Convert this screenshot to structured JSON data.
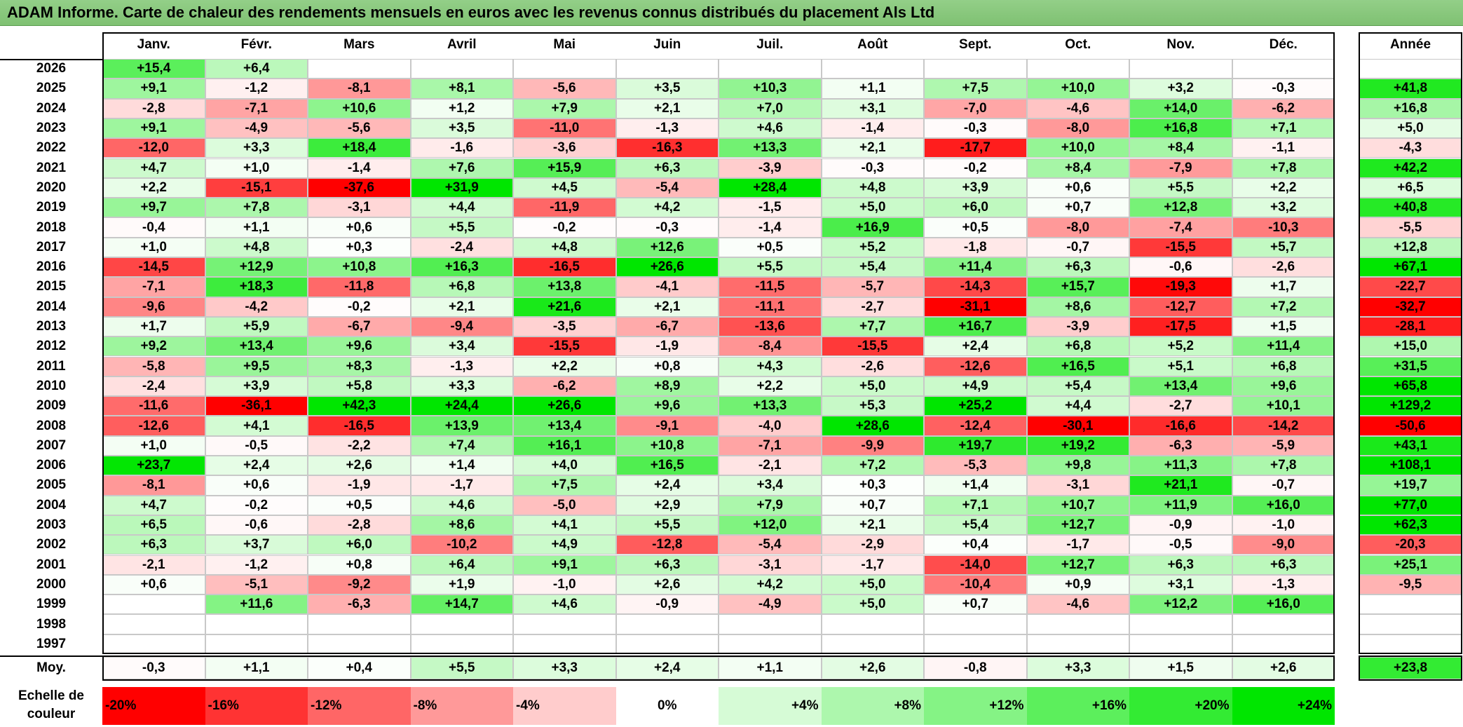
{
  "title": "ADAM Informe. Carte de chaleur des rendements mensuels en euros avec les revenus connus distribués du placement Als Ltd",
  "chart_data": {
    "type": "heatmap",
    "title": "ADAM Informe. Carte de chaleur des rendements mensuels en euros avec les revenus connus distribués du placement Als Ltd",
    "months": [
      "Janv.",
      "Févr.",
      "Mars",
      "Avril",
      "Mai",
      "Juin",
      "Juil.",
      "Août",
      "Sept.",
      "Oct.",
      "Nov.",
      "Déc."
    ],
    "year_header": "Année",
    "rows": [
      {
        "year": "2026",
        "values": [
          "+15,4",
          "+6,4",
          "",
          "",
          "",
          "",
          "",
          "",
          "",
          "",
          "",
          ""
        ],
        "annual": ""
      },
      {
        "year": "2025",
        "values": [
          "+9,1",
          "-1,2",
          "-8,1",
          "+8,1",
          "-5,6",
          "+3,5",
          "+10,3",
          "+1,1",
          "+7,5",
          "+10,0",
          "+3,2",
          "-0,3"
        ],
        "annual": "+41,8"
      },
      {
        "year": "2024",
        "values": [
          "-2,8",
          "-7,1",
          "+10,6",
          "+1,2",
          "+7,9",
          "+2,1",
          "+7,0",
          "+3,1",
          "-7,0",
          "-4,6",
          "+14,0",
          "-6,2"
        ],
        "annual": "+16,8"
      },
      {
        "year": "2023",
        "values": [
          "+9,1",
          "-4,9",
          "-5,6",
          "+3,5",
          "-11,0",
          "-1,3",
          "+4,6",
          "-1,4",
          "-0,3",
          "-8,0",
          "+16,8",
          "+7,1"
        ],
        "annual": "+5,0"
      },
      {
        "year": "2022",
        "values": [
          "-12,0",
          "+3,3",
          "+18,4",
          "-1,6",
          "-3,6",
          "-16,3",
          "+13,3",
          "+2,1",
          "-17,7",
          "+10,0",
          "+8,4",
          "-1,1"
        ],
        "annual": "-4,3"
      },
      {
        "year": "2021",
        "values": [
          "+4,7",
          "+1,0",
          "-1,4",
          "+7,6",
          "+15,9",
          "+6,3",
          "-3,9",
          "-0,3",
          "-0,2",
          "+8,4",
          "-7,9",
          "+7,8"
        ],
        "annual": "+42,2"
      },
      {
        "year": "2020",
        "values": [
          "+2,2",
          "-15,1",
          "-37,6",
          "+31,9",
          "+4,5",
          "-5,4",
          "+28,4",
          "+4,8",
          "+3,9",
          "+0,6",
          "+5,5",
          "+2,2"
        ],
        "annual": "+6,5"
      },
      {
        "year": "2019",
        "values": [
          "+9,7",
          "+7,8",
          "-3,1",
          "+4,4",
          "-11,9",
          "+4,2",
          "-1,5",
          "+5,0",
          "+6,0",
          "+0,7",
          "+12,8",
          "+3,2"
        ],
        "annual": "+40,8"
      },
      {
        "year": "2018",
        "values": [
          "-0,4",
          "+1,1",
          "+0,6",
          "+5,5",
          "-0,2",
          "-0,3",
          "-1,4",
          "+16,9",
          "+0,5",
          "-8,0",
          "-7,4",
          "-10,3"
        ],
        "annual": "-5,5"
      },
      {
        "year": "2017",
        "values": [
          "+1,0",
          "+4,8",
          "+0,3",
          "-2,4",
          "+4,8",
          "+12,6",
          "+0,5",
          "+5,2",
          "-1,8",
          "-0,7",
          "-15,5",
          "+5,7"
        ],
        "annual": "+12,8"
      },
      {
        "year": "2016",
        "values": [
          "-14,5",
          "+12,9",
          "+10,8",
          "+16,3",
          "-16,5",
          "+26,6",
          "+5,5",
          "+5,4",
          "+11,4",
          "+6,3",
          "-0,6",
          "-2,6"
        ],
        "annual": "+67,1"
      },
      {
        "year": "2015",
        "values": [
          "-7,1",
          "+18,3",
          "-11,8",
          "+6,8",
          "+13,8",
          "-4,1",
          "-11,5",
          "-5,7",
          "-14,3",
          "+15,7",
          "-19,3",
          "+1,7"
        ],
        "annual": "-22,7"
      },
      {
        "year": "2014",
        "values": [
          "-9,6",
          "-4,2",
          "-0,2",
          "+2,1",
          "+21,6",
          "+2,1",
          "-11,1",
          "-2,7",
          "-31,1",
          "+8,6",
          "-12,7",
          "+7,2"
        ],
        "annual": "-32,7"
      },
      {
        "year": "2013",
        "values": [
          "+1,7",
          "+5,9",
          "-6,7",
          "-9,4",
          "-3,5",
          "-6,7",
          "-13,6",
          "+7,7",
          "+16,7",
          "-3,9",
          "-17,5",
          "+1,5"
        ],
        "annual": "-28,1"
      },
      {
        "year": "2012",
        "values": [
          "+9,2",
          "+13,4",
          "+9,6",
          "+3,4",
          "-15,5",
          "-1,9",
          "-8,4",
          "-15,5",
          "+2,4",
          "+6,8",
          "+5,2",
          "+11,4"
        ],
        "annual": "+15,0"
      },
      {
        "year": "2011",
        "values": [
          "-5,8",
          "+9,5",
          "+8,3",
          "-1,3",
          "+2,2",
          "+0,8",
          "+4,3",
          "-2,6",
          "-12,6",
          "+16,5",
          "+5,1",
          "+6,8"
        ],
        "annual": "+31,5"
      },
      {
        "year": "2010",
        "values": [
          "-2,4",
          "+3,9",
          "+5,8",
          "+3,3",
          "-6,2",
          "+8,9",
          "+2,2",
          "+5,0",
          "+4,9",
          "+5,4",
          "+13,4",
          "+9,6"
        ],
        "annual": "+65,8"
      },
      {
        "year": "2009",
        "values": [
          "-11,6",
          "-36,1",
          "+42,3",
          "+24,4",
          "+26,6",
          "+9,6",
          "+13,3",
          "+5,3",
          "+25,2",
          "+4,4",
          "-2,7",
          "+10,1"
        ],
        "annual": "+129,2"
      },
      {
        "year": "2008",
        "values": [
          "-12,6",
          "+4,1",
          "-16,5",
          "+13,9",
          "+13,4",
          "-9,1",
          "-4,0",
          "+28,6",
          "-12,4",
          "-30,1",
          "-16,6",
          "-14,2"
        ],
        "annual": "-50,6"
      },
      {
        "year": "2007",
        "values": [
          "+1,0",
          "-0,5",
          "-2,2",
          "+7,4",
          "+16,1",
          "+10,8",
          "-7,1",
          "-9,9",
          "+19,7",
          "+19,2",
          "-6,3",
          "-5,9"
        ],
        "annual": "+43,1"
      },
      {
        "year": "2006",
        "values": [
          "+23,7",
          "+2,4",
          "+2,6",
          "+1,4",
          "+4,0",
          "+16,5",
          "-2,1",
          "+7,2",
          "-5,3",
          "+9,8",
          "+11,3",
          "+7,8"
        ],
        "annual": "+108,1"
      },
      {
        "year": "2005",
        "values": [
          "-8,1",
          "+0,6",
          "-1,9",
          "-1,7",
          "+7,5",
          "+2,4",
          "+3,4",
          "+0,3",
          "+1,4",
          "-3,1",
          "+21,1",
          "-0,7"
        ],
        "annual": "+19,7"
      },
      {
        "year": "2004",
        "values": [
          "+4,7",
          "-0,2",
          "+0,5",
          "+4,6",
          "-5,0",
          "+2,9",
          "+7,9",
          "+0,7",
          "+7,1",
          "+10,7",
          "+11,9",
          "+16,0"
        ],
        "annual": "+77,0"
      },
      {
        "year": "2003",
        "values": [
          "+6,5",
          "-0,6",
          "-2,8",
          "+8,6",
          "+4,1",
          "+5,5",
          "+12,0",
          "+2,1",
          "+5,4",
          "+12,7",
          "-0,9",
          "-1,0"
        ],
        "annual": "+62,3"
      },
      {
        "year": "2002",
        "values": [
          "+6,3",
          "+3,7",
          "+6,0",
          "-10,2",
          "+4,9",
          "-12,8",
          "-5,4",
          "-2,9",
          "+0,4",
          "-1,7",
          "-0,5",
          "-9,0"
        ],
        "annual": "-20,3"
      },
      {
        "year": "2001",
        "values": [
          "-2,1",
          "-1,2",
          "+0,8",
          "+6,4",
          "+9,1",
          "+6,3",
          "-3,1",
          "-1,7",
          "-14,0",
          "+12,7",
          "+6,3",
          "+6,3"
        ],
        "annual": "+25,1"
      },
      {
        "year": "2000",
        "values": [
          "+0,6",
          "-5,1",
          "-9,2",
          "+1,9",
          "-1,0",
          "+2,6",
          "+4,2",
          "+5,0",
          "-10,4",
          "+0,9",
          "+3,1",
          "-1,3"
        ],
        "annual": "-9,5"
      },
      {
        "year": "1999",
        "values": [
          "",
          "+11,6",
          "-6,3",
          "+14,7",
          "+4,6",
          "-0,9",
          "-4,9",
          "+5,0",
          "+0,7",
          "-4,6",
          "+12,2",
          "+16,0"
        ],
        "annual": ""
      },
      {
        "year": "1998",
        "values": [
          "",
          "",
          "",
          "",
          "",
          "",
          "",
          "",
          "",
          "",
          "",
          ""
        ],
        "annual": ""
      },
      {
        "year": "1997",
        "values": [
          "",
          "",
          "",
          "",
          "",
          "",
          "",
          "",
          "",
          "",
          "",
          ""
        ],
        "annual": ""
      }
    ],
    "average": {
      "label": "Moy.",
      "values": [
        "-0,3",
        "+1,1",
        "+0,4",
        "+5,5",
        "+3,3",
        "+2,4",
        "+1,1",
        "+2,6",
        "-0,8",
        "+3,3",
        "+1,5",
        "+2,6"
      ],
      "annual": "+23,8"
    },
    "scale": {
      "label": "Echelle de couleur",
      "steps": [
        {
          "label": "-20%",
          "value": -20,
          "color": "#ff0000"
        },
        {
          "label": "-16%",
          "value": -16,
          "color": "#ff3333"
        },
        {
          "label": "-12%",
          "value": -12,
          "color": "#ff6666"
        },
        {
          "label": "-8%",
          "value": -8,
          "color": "#ff9999"
        },
        {
          "label": "-4%",
          "value": -4,
          "color": "#ffcccc"
        },
        {
          "label": "0%",
          "value": 0,
          "color": "#ffffff"
        },
        {
          "label": "+4%",
          "value": 4,
          "color": "#d6fbd6"
        },
        {
          "label": "+8%",
          "value": 8,
          "color": "#adf7ad"
        },
        {
          "label": "+12%",
          "value": 12,
          "color": "#85f385"
        },
        {
          "label": "+16%",
          "value": 16,
          "color": "#5cef5c"
        },
        {
          "label": "+20%",
          "value": 20,
          "color": "#33eb33"
        },
        {
          "label": "+24%",
          "value": 24,
          "color": "#00e600"
        }
      ]
    }
  }
}
